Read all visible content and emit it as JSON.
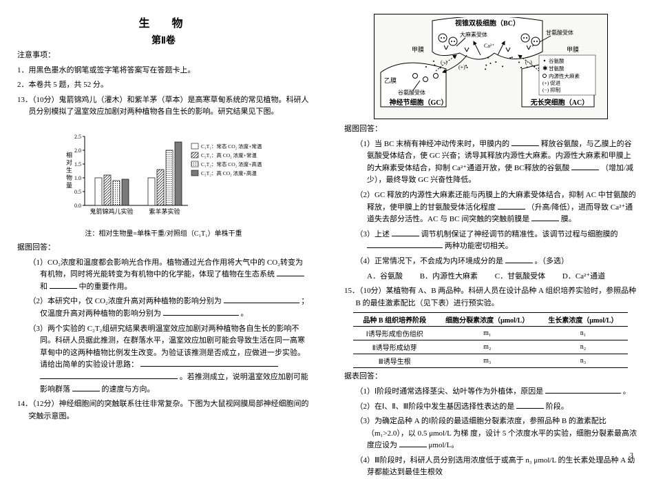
{
  "header": {
    "title": "生　物",
    "subtitle": "第Ⅱ卷"
  },
  "left": {
    "notice_head": "注意事项：",
    "notice1": "1．用黑色墨水的钢笔或签字笔将答案写在答题卡上。",
    "notice2": "2．本卷共 5 题，共 52 分。",
    "q13_head": "13．（10分）鬼箭锦鸡儿（灌木）和紫羊茅（草本）是高寒草甸系统的常见植物。科研人员分别模拟了温室效应加剧对两种植物各自生长的影响。研究结果见下图。",
    "chart": {
      "ylabel": "相对生物量",
      "ymax": 2.5,
      "ytick": 0.5,
      "groups": [
        "鬼箭锦鸡儿实验",
        "紫羊茅实验"
      ],
      "legend": [
        {
          "label": "C₁T₁：常态 CO₂ 浓度+常温",
          "fill": "#ffffff",
          "pattern": "none"
        },
        {
          "label": "C₂T₁：高 CO₂ 浓度+常温",
          "fill": "#ffffff",
          "pattern": "diag"
        },
        {
          "label": "C₁T₂：常态 CO₂ 浓度+高温",
          "fill": "#ffffff",
          "pattern": "dots"
        },
        {
          "label": "C₂T₂：高 CO₂ 浓度+高温",
          "fill": "#7a7a7a",
          "pattern": "none"
        }
      ],
      "data": [
        [
          1.0,
          1.1,
          0.9,
          0.95
        ],
        [
          1.0,
          1.3,
          2.0,
          2.3
        ]
      ]
    },
    "chart_note": "注：相对生物量=单株干重/对照组（C₁T₁）单株干重",
    "answer_head": "据图回答：",
    "q13_1a": "（1）CO₂浓度和温度都会影响光合作用。植物通过光合作用将大气中的 CO₂转变为有机物，同时将光能转变为有机物中的化学能，体现了植物在生态系统",
    "q13_1b": "和",
    "q13_1c": "中的重要作用。",
    "q13_2a": "（2）本研究中，仅 CO₂浓度升高对两种植物的影响分别为",
    "q13_2b": "；仅温度升高对两种植物的影响分别为",
    "q13_2c": "。",
    "q13_3a": "（3）两个实验的 C₂T₂组研究结果表明温室效应加剧对两种植物各自生长的影响不同。科研人员据此推测，在群落水平，温室效应加剧可能会导致生活在同一高寒草甸中的这两种植物比例发生改变。为验证该推测是否成立，应做进一步实验。请给出简单的实验设计思路：",
    "q13_3b": "。若推测成立，说明温室效应加剧可能影响群落",
    "q13_3c": "的速度与方向。",
    "q14_head": "14．（12分）神经细胞间的突触联系往往非常复杂。下图为大鼠视网膜局部神经细胞间的突触示意图。"
  },
  "right": {
    "diagram": {
      "labels": {
        "bc": "视锥双极细胞（BC）",
        "jia": "甲膜",
        "yi": "乙膜",
        "bing": "丙膜",
        "gc": "神经节细胞（GC）",
        "ac": "无长突细胞（AC）",
        "receptor": "大麻素受体",
        "ca": "Ca²⁺",
        "gan_rec": "甘氨酸受体",
        "legend1": "谷氨酸",
        "legend2": "甘氨酸",
        "legend3": "内源性大麻素",
        "plus": "(+) 促进",
        "minus": "(−) 抑制"
      }
    },
    "answer_head": "据图回答：",
    "q14_1a": "（1）当 BC 末梢有神经冲动传来时，甲膜内的",
    "q14_1b": "释放谷氨酸，与乙膜上的谷氨酸受体结合，使 GC 兴奋；诱导其释放内源性大麻素。内源性大麻素和甲膜上的大麻素受体结合，抑制 Ca²⁺通道开放，使 BC释放的谷氨酸",
    "q14_1c": "（增加/减少），最终导致 GC 兴奋性降低。",
    "q14_2a": "（2）GC 释放的内源性大麻素还能与丙膜上的大麻素受体结合，抑制 AC 中甘氨酸的释放，使甲膜上的甘氨酸受体活化程度",
    "q14_2b": "（升高/降低），进而导致 Ca²⁺通道失去部分活性。AC 与 BC 间突触的突触前膜是",
    "q14_2c": "膜。",
    "q14_3a": "（3）上述",
    "q14_3b": "调节机制保证了神经调节的精准性。该调节过程与细胞膜的",
    "q14_3c": "两种功能密切相关。",
    "q14_4a": "（4）正常情况下，不会成为内环境成分的是",
    "q14_4b": "。（多选）",
    "opts": {
      "A": "A．谷氨酸",
      "B": "B．内源性大麻素",
      "C": "C．甘氨酸受体",
      "D": "D．Ca²⁺通道"
    },
    "q15_head": "15．（10分）某植物有 A、B 两品种。科研人员在设计品种 A 组织培养实验时，参照品种 B 的最佳激素配比（见下表）进行预实验。",
    "table": {
      "headers": [
        "品种 B 组织培养阶段",
        "细胞分裂素浓度（μmol/L）",
        "生长素浓度（μmol/L）"
      ],
      "rows": [
        [
          "Ⅰ诱导形成愈伤组织",
          "m₁",
          "n₁"
        ],
        [
          "Ⅱ诱导形成幼芽",
          "m₂",
          "n₂"
        ],
        [
          "Ⅲ诱导生根",
          "m₃",
          "n₃"
        ]
      ]
    },
    "answer_head2": "据表回答：",
    "q15_1a": "（1）Ⅰ阶段时通常选择茎尖、幼叶等作为外植体，原因是",
    "q15_1b": "。",
    "q15_2a": "（2）在Ⅰ、Ⅱ、Ⅲ阶段中发生基因选择性表达的是",
    "q15_2b": "阶段。",
    "q15_3a": "（3）为确定品种 A 的Ⅰ阶段的最适细胞分裂素浓度，参照品种 B 的激素配比（m₁>2.0），以 0.5 μmol/L 为梯",
    "q15_3b": "度，设计 5 个浓度水平的实验，细胞分裂素最高浓度应设为",
    "q15_3c": "μmol/L。",
    "q15_4": "（4）Ⅲ阶段时，科研人员分别选用浓度低于或高于 n₃ μmol/L 的生长素处理品种 A 幼芽都能达到最佳生根效"
  },
  "pagenum": "3"
}
